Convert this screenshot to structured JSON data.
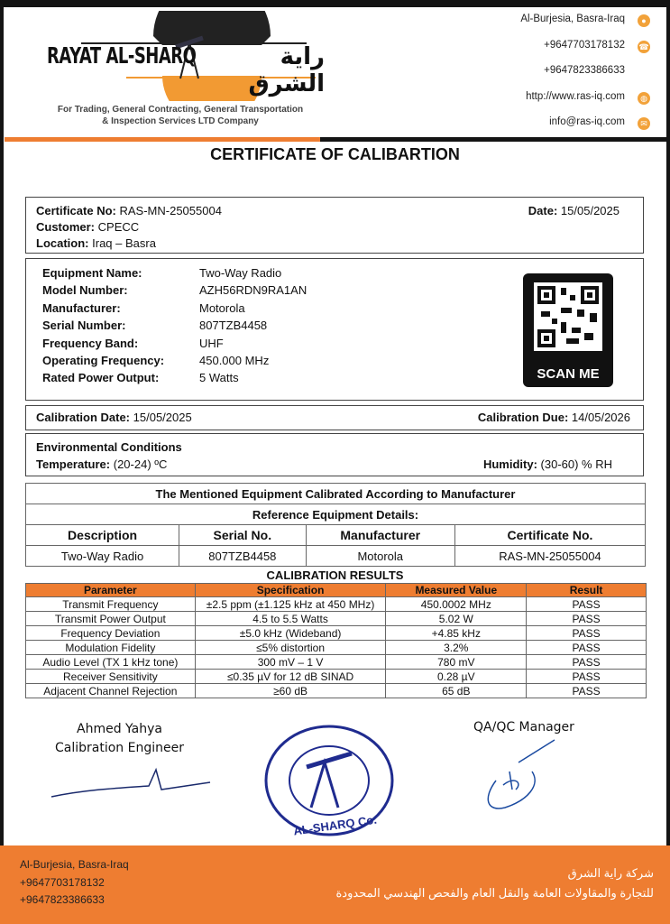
{
  "header": {
    "logo_en": "RAYAT AL-SHARQ",
    "logo_ar": "راية الشرق",
    "tagline1": "For Trading, General Contracting, General Transportation",
    "tagline2": "& Inspection Services LTD Company",
    "contacts": [
      {
        "text": "Al-Burjesia, Basra-Iraq",
        "icon": "location-pin-icon"
      },
      {
        "text": "+9647703178132",
        "icon": "phone-icon"
      },
      {
        "text": "+9647823386633",
        "icon": ""
      },
      {
        "text": "http://www.ras-iq.com",
        "icon": "globe-icon"
      },
      {
        "text": "info@ras-iq.com",
        "icon": "envelope-icon"
      }
    ],
    "accent": "#ee7d31"
  },
  "title": "CERTIFICATE OF CALIBARTION",
  "cert": {
    "no_label": "Certificate No:",
    "no": "RAS-MN-25055004",
    "customer_label": "Customer:",
    "customer": "CPECC",
    "location_label": "Location:",
    "location": "Iraq – Basra",
    "date_label": "Date:",
    "date": "15/05/2025"
  },
  "equipment": [
    {
      "label": "Equipment Name:",
      "value": "Two-Way Radio"
    },
    {
      "label": "Model Number:",
      "value": "AZH56RDN9RA1AN"
    },
    {
      "label": "Manufacturer:",
      "value": "Motorola"
    },
    {
      "label": "Serial Number:",
      "value": "807TZB4458"
    },
    {
      "label": "Frequency Band:",
      "value": "UHF"
    },
    {
      "label": "Operating Frequency:",
      "value": "450.000 MHz"
    },
    {
      "label": "Rated Power Output:",
      "value": "5 Watts"
    }
  ],
  "qr": {
    "label": "SCAN ME"
  },
  "calibration": {
    "date_label": "Calibration Date:",
    "date": "15/05/2025",
    "due_label": "Calibration Due:",
    "due": "14/05/2026"
  },
  "env": {
    "title": "Environmental Conditions",
    "temp_label": "Temperature:",
    "temp": "(20-24) ºC",
    "hum_label": "Humidity:",
    "hum": "(30-60) % RH"
  },
  "reference": {
    "statement": "The Mentioned Equipment Calibrated According to Manufacturer",
    "title": "Reference Equipment Details:",
    "headers": [
      "Description",
      "Serial No.",
      "Manufacturer",
      "Certificate No."
    ],
    "row": [
      "Two-Way Radio",
      "807TZB4458",
      "Motorola",
      "RAS-MN-25055004"
    ]
  },
  "results": {
    "title": "CALIBRATION RESULTS",
    "headers": [
      "Parameter",
      "Specification",
      "Measured Value",
      "Result"
    ],
    "rows": [
      [
        "Transmit Frequency",
        "±2.5 ppm (±1.125 kHz at 450 MHz)",
        "450.0002 MHz",
        "PASS"
      ],
      [
        "Transmit Power Output",
        "4.5 to 5.5 Watts",
        "5.02 W",
        "PASS"
      ],
      [
        "Frequency Deviation",
        "±5.0 kHz (Wideband)",
        "+4.85 kHz",
        "PASS"
      ],
      [
        "Modulation Fidelity",
        "≤5% distortion",
        "3.2%",
        "PASS"
      ],
      [
        "Audio Level (TX 1 kHz tone)",
        "300 mV – 1 V",
        "780 mV",
        "PASS"
      ],
      [
        "Receiver Sensitivity",
        "≤0.35 µV for 12 dB SINAD",
        "0.28 µV",
        "PASS"
      ],
      [
        "Adjacent Channel Rejection",
        "≥60 dB",
        "65 dB",
        "PASS"
      ]
    ]
  },
  "signatures": {
    "engineer_name": "Ahmed Yahya",
    "engineer_title": "Calibration Engineer",
    "qa_title": "QA/QC Manager",
    "stamp_text": "RAYAT AL-SHARQ Co. شركة راية الشرق"
  },
  "footer": {
    "lines": [
      "Al-Burjesia, Basra-Iraq",
      "+9647703178132",
      "+9647823386633"
    ],
    "ar1": "شركة راية الشرق",
    "ar2": "للتجارة والمقاولات العامة والنقل العام والفحص الهندسي المحدودة"
  }
}
